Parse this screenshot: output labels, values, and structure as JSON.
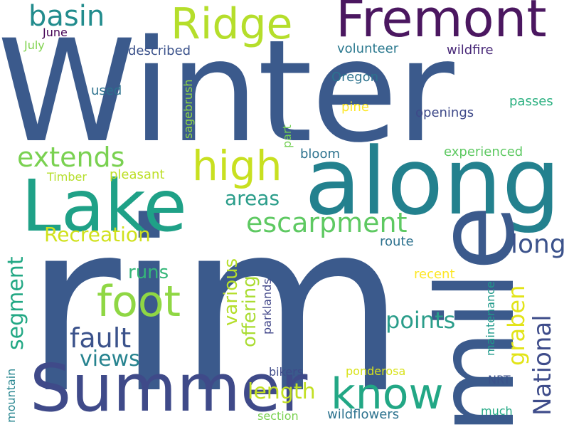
{
  "words": [
    {
      "text": "Winter",
      "color": "#3b5a8c"
    },
    {
      "text": "rim",
      "color": "#3b5a8c"
    },
    {
      "text": "along",
      "color": "#23818e"
    },
    {
      "text": "mile",
      "color": "#3b5a8c"
    },
    {
      "text": "Lake",
      "color": "#1fa187"
    },
    {
      "text": "Summer",
      "color": "#3f4a89"
    },
    {
      "text": "Fremont",
      "color": "#4b1760"
    },
    {
      "text": "Ridge",
      "color": "#b5de2b"
    },
    {
      "text": "high",
      "color": "#c8e020"
    },
    {
      "text": "foot",
      "color": "#8fd744"
    },
    {
      "text": "know",
      "color": "#22a785"
    },
    {
      "text": "basin",
      "color": "#228c8d"
    },
    {
      "text": "extends",
      "color": "#7ad151"
    },
    {
      "text": "escarpment",
      "color": "#5ec962"
    },
    {
      "text": "fault",
      "color": "#3b528b"
    },
    {
      "text": "segment",
      "color": "#22a884"
    },
    {
      "text": "National",
      "color": "#3e4c8a"
    },
    {
      "text": "graben",
      "color": "#e2e418"
    },
    {
      "text": "long",
      "color": "#3b528b"
    },
    {
      "text": "points",
      "color": "#2a9d8a"
    },
    {
      "text": "views",
      "color": "#26838f"
    },
    {
      "text": "length",
      "color": "#c2df23"
    },
    {
      "text": "various",
      "color": "#b5de2b"
    },
    {
      "text": "offering",
      "color": "#aadc32"
    },
    {
      "text": "runs",
      "color": "#35b779"
    },
    {
      "text": "areas",
      "color": "#2a9d8a"
    },
    {
      "text": "Recreation",
      "color": "#d0e11c"
    },
    {
      "text": "June",
      "color": "#440154"
    },
    {
      "text": "July",
      "color": "#7fd34e"
    },
    {
      "text": "described",
      "color": "#3b528b"
    },
    {
      "text": "volunteer",
      "color": "#2a788e"
    },
    {
      "text": "wildfire",
      "color": "#482878"
    },
    {
      "text": "Oregon",
      "color": "#2c728e"
    },
    {
      "text": "used",
      "color": "#2c728e"
    },
    {
      "text": "sagebrush",
      "color": "#8fd744"
    },
    {
      "text": "pine",
      "color": "#fde725"
    },
    {
      "text": "openings",
      "color": "#3e4989"
    },
    {
      "text": "passes",
      "color": "#29af7f"
    },
    {
      "text": "part",
      "color": "#75d054"
    },
    {
      "text": "bloom",
      "color": "#2c728e"
    },
    {
      "text": "experienced",
      "color": "#5ec962"
    },
    {
      "text": "Timber",
      "color": "#b5de2b"
    },
    {
      "text": "pleasant",
      "color": "#bddf26"
    },
    {
      "text": "route",
      "color": "#2d718e"
    },
    {
      "text": "recent",
      "color": "#fde725"
    },
    {
      "text": "parklands",
      "color": "#404588"
    },
    {
      "text": "maintenance",
      "color": "#1f998a"
    },
    {
      "text": "mountain",
      "color": "#25848e"
    },
    {
      "text": "bikers",
      "color": "#3e4a89"
    },
    {
      "text": "ponderosa",
      "color": "#d8e219"
    },
    {
      "text": "NRT",
      "color": "#3b528b"
    },
    {
      "text": "section",
      "color": "#7ad151"
    },
    {
      "text": "wildflowers",
      "color": "#2c728e"
    },
    {
      "text": "much",
      "color": "#22a884"
    }
  ]
}
